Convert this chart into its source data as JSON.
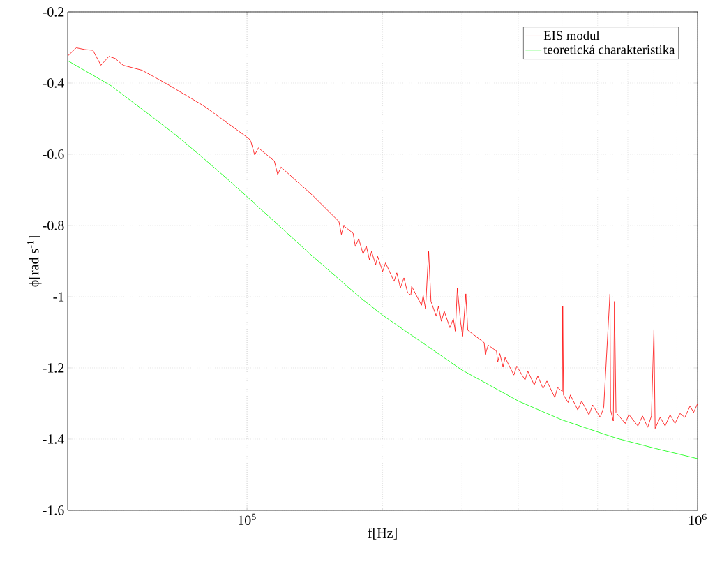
{
  "chart_data": {
    "type": "line",
    "xlabel": "f[Hz]",
    "ylabel": "ϕ[rad s$^{-1}$]",
    "log": "x",
    "grid": true,
    "legend": "top right",
    "marker": "none",
    "line_style": "solid",
    "xlim": [
      40000,
      1000000
    ],
    "ylim": [
      -1.6,
      -0.2
    ],
    "xticks": [
      {
        "value": 100000,
        "label": "10$^{5}$"
      },
      {
        "value": 1000000,
        "label": "10$^{6}$"
      }
    ],
    "yticks": [
      -1.6,
      -1.4,
      -1.2,
      -1,
      -0.8,
      -0.6,
      -0.4,
      -0.2
    ],
    "series": [
      {
        "name": "EIS modul",
        "color": "#ff0000",
        "x": [
          40000,
          41800,
          43700,
          45500,
          47400,
          49400,
          51000,
          53100,
          58500,
          66300,
          80200,
          101000,
          102000,
          104000,
          106000,
          115000,
          117000,
          119000,
          140000,
          160000,
          162000,
          164000,
          172000,
          174000,
          177000,
          181000,
          184000,
          187000,
          189000,
          193000,
          195000,
          200000,
          203000,
          212000,
          215000,
          219000,
          223000,
          227000,
          231000,
          232000,
          244000,
          246000,
          249000,
          253000,
          256000,
          263000,
          266000,
          270000,
          274000,
          282000,
          287000,
          290000,
          293000,
          298000,
          301000,
          306000,
          309000,
          336000,
          338000,
          343000,
          358000,
          360000,
          364000,
          370000,
          374000,
          391000,
          397000,
          414000,
          420000,
          434000,
          442000,
          454000,
          463000,
          482000,
          489000,
          501000,
          502000,
          504000,
          516000,
          522000,
          542000,
          553000,
          574000,
          585000,
          608000,
          619000,
          639000,
          641000,
          650000,
          654000,
          659000,
          691000,
          704000,
          737000,
          755000,
          775000,
          790000,
          800000,
          805000,
          826000,
          847000,
          869000,
          891000,
          914000,
          937000,
          962000,
          980000,
          1000000
        ],
        "values": [
          -0.324,
          -0.301,
          -0.306,
          -0.308,
          -0.35,
          -0.325,
          -0.331,
          -0.35,
          -0.364,
          -0.402,
          -0.464,
          -0.556,
          -0.564,
          -0.602,
          -0.582,
          -0.619,
          -0.657,
          -0.636,
          -0.716,
          -0.789,
          -0.825,
          -0.801,
          -0.822,
          -0.859,
          -0.837,
          -0.88,
          -0.858,
          -0.896,
          -0.873,
          -0.91,
          -0.887,
          -0.929,
          -0.905,
          -0.957,
          -0.933,
          -0.975,
          -0.947,
          -0.987,
          -0.996,
          -0.971,
          -1.024,
          -0.996,
          -1.034,
          -0.873,
          -1.013,
          -1.055,
          -1.027,
          -1.069,
          -1.041,
          -1.087,
          -1.062,
          -1.097,
          -0.976,
          -1.073,
          -1.111,
          -0.992,
          -1.094,
          -1.129,
          -1.162,
          -1.136,
          -1.153,
          -1.184,
          -1.16,
          -1.197,
          -1.171,
          -1.22,
          -1.195,
          -1.234,
          -1.209,
          -1.248,
          -1.223,
          -1.258,
          -1.237,
          -1.283,
          -1.255,
          -1.266,
          -1.027,
          -1.276,
          -1.297,
          -1.276,
          -1.318,
          -1.293,
          -1.332,
          -1.304,
          -1.339,
          -1.311,
          -0.992,
          -1.318,
          -1.349,
          -1.013,
          -1.325,
          -1.356,
          -1.331,
          -1.363,
          -1.335,
          -1.367,
          -1.335,
          -1.094,
          -1.37,
          -1.339,
          -1.363,
          -1.332,
          -1.356,
          -1.328,
          -1.339,
          -1.307,
          -1.325,
          -1.3
        ]
      },
      {
        "name": "teoretická charakteristika",
        "color": "#00ff00",
        "x": [
          40000,
          50000,
          60000,
          70000,
          80000,
          90000,
          100000,
          140000,
          177000,
          200000,
          300000,
          400000,
          500000,
          662000,
          805000,
          1000000
        ],
        "values": [
          -0.337,
          -0.408,
          -0.484,
          -0.549,
          -0.611,
          -0.667,
          -0.719,
          -0.887,
          -0.999,
          -1.052,
          -1.206,
          -1.293,
          -1.346,
          -1.398,
          -1.426,
          -1.455
        ]
      }
    ]
  }
}
